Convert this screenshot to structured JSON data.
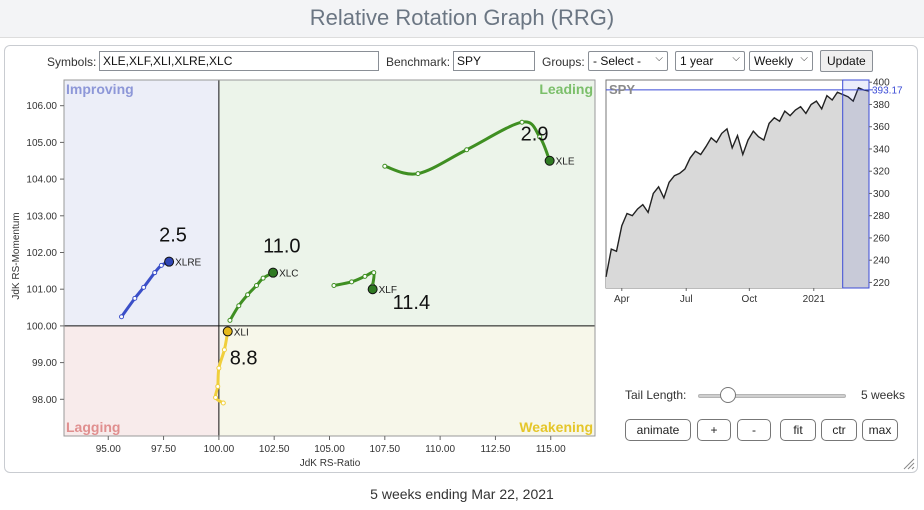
{
  "page_title": "Relative Rotation Graph (RRG)",
  "toolbar": {
    "symbols_label": "Symbols:",
    "symbols_value": "XLE,XLF,XLI,XLRE,XLC",
    "benchmark_label": "Benchmark:",
    "benchmark_value": "SPY",
    "groups_label": "Groups:",
    "groups_selected": "- Select -",
    "period_selected": "1 year",
    "frequency_selected": "Weekly",
    "update_label": "Update"
  },
  "rrg": {
    "quadrants": {
      "improving": "Improving",
      "leading": "Leading",
      "lagging": "Lagging",
      "weakening": "Weakening"
    },
    "quadrant_colors": {
      "improving": "#eceef8",
      "leading": "#ecf4ea",
      "lagging": "#f8ebeb",
      "weakening": "#f7f7ea"
    },
    "x_axis_label": "JdK RS-Ratio",
    "y_axis_label": "JdK RS-Momentum",
    "x_ticks": [
      "95.00",
      "97.50",
      "100.00",
      "102.50",
      "105.00",
      "107.50",
      "110.00",
      "112.50",
      "115.00"
    ],
    "y_ticks": [
      "106.00",
      "105.00",
      "104.00",
      "103.00",
      "102.00",
      "101.00",
      "100.00",
      "99.00",
      "98.00"
    ],
    "x_range": [
      93.0,
      117.0
    ],
    "y_range": [
      97.0,
      106.7
    ],
    "center": [
      100.0,
      100.0
    ],
    "tails": [
      {
        "symbol": "XLE",
        "color": "#3f8f22",
        "dot_color": "#2f7a22",
        "value_label": "2.9",
        "points": [
          [
            107.5,
            104.35
          ],
          [
            109.0,
            104.15
          ],
          [
            111.2,
            104.8
          ],
          [
            113.7,
            105.55
          ],
          [
            114.5,
            105.15
          ],
          [
            114.95,
            104.5
          ]
        ]
      },
      {
        "symbol": "XLF",
        "color": "#3f8f22",
        "dot_color": "#2f7a22",
        "value_label": "11.4",
        "points": [
          [
            105.2,
            101.1
          ],
          [
            106.0,
            101.2
          ],
          [
            106.6,
            101.35
          ],
          [
            107.0,
            101.45
          ],
          [
            106.95,
            101.1
          ],
          [
            106.95,
            101.0
          ]
        ]
      },
      {
        "symbol": "XLC",
        "color": "#3f8f22",
        "dot_color": "#2f7a22",
        "value_label": "11.0",
        "points": [
          [
            100.5,
            100.15
          ],
          [
            100.9,
            100.55
          ],
          [
            101.3,
            100.85
          ],
          [
            101.7,
            101.1
          ],
          [
            102.0,
            101.3
          ],
          [
            102.45,
            101.45
          ]
        ]
      },
      {
        "symbol": "XLRE",
        "color": "#3b4fc8",
        "dot_color": "#2f45b5",
        "value_label": "2.5",
        "points": [
          [
            95.6,
            100.25
          ],
          [
            96.2,
            100.75
          ],
          [
            96.6,
            101.05
          ],
          [
            97.1,
            101.45
          ],
          [
            97.4,
            101.65
          ],
          [
            97.75,
            101.75
          ]
        ]
      },
      {
        "symbol": "XLI",
        "color": "#f0cf3c",
        "dot_color": "#e5b91a",
        "value_label": "8.8",
        "points": [
          [
            100.2,
            97.9
          ],
          [
            99.85,
            98.05
          ],
          [
            99.95,
            98.35
          ],
          [
            100.0,
            98.85
          ],
          [
            100.25,
            99.35
          ],
          [
            100.4,
            99.85
          ]
        ]
      }
    ]
  },
  "benchmark_chart": {
    "symbol": "SPY",
    "last_value": "393.17",
    "x_labels": [
      "Apr",
      "Jul",
      "Oct",
      "2021"
    ],
    "y_ticks": [
      "400",
      "380",
      "360",
      "340",
      "320",
      "300",
      "280",
      "260",
      "240",
      "220"
    ],
    "y_range": [
      215,
      402
    ],
    "line_color": "#222222",
    "fill_color": "#d9d9d9",
    "highlight_color": "#3b4bd6",
    "prices": [
      225,
      250,
      248,
      271,
      282,
      280,
      286,
      290,
      283,
      300,
      306,
      296,
      310,
      316,
      318,
      322,
      332,
      338,
      335,
      342,
      350,
      346,
      354,
      358,
      341,
      352,
      335,
      348,
      356,
      351,
      348,
      363,
      368,
      365,
      374,
      370,
      375,
      378,
      372,
      380,
      383,
      376,
      388,
      384,
      391,
      389,
      387,
      383,
      395,
      393,
      392
    ]
  },
  "tail_length": {
    "label": "Tail Length:",
    "value": 5,
    "value_text": "5 weeks"
  },
  "controls": {
    "animate": "animate",
    "plus": "+",
    "minus": "-",
    "fit": "fit",
    "ctr": "ctr",
    "max": "max"
  },
  "footer_text": "5 weeks ending Mar 22, 2021"
}
